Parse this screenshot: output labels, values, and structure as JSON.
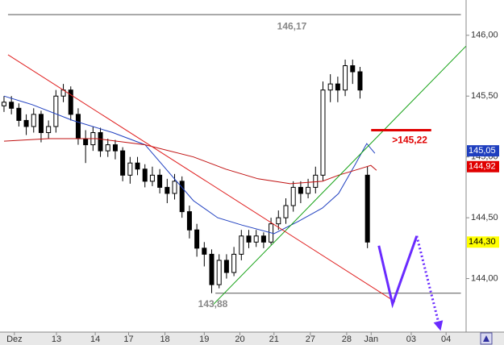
{
  "chart_data": {
    "type": "candlestick",
    "xlim": [
      -0.54,
      62.3
    ],
    "ylim": [
      143.56,
      146.29
    ],
    "yticks": [
      {
        "value": 146.0,
        "label": "146,00"
      },
      {
        "value": 145.5,
        "label": "145,50"
      },
      {
        "value": 145.0,
        "label": "145,00"
      },
      {
        "value": 144.5,
        "label": "144,50"
      },
      {
        "value": 144.0,
        "label": "144,00"
      }
    ],
    "xticks": [
      {
        "value": 1.4,
        "label": "Dez"
      },
      {
        "value": 7.07,
        "label": "13"
      },
      {
        "value": 12.3,
        "label": "14"
      },
      {
        "value": 16.8,
        "label": "17"
      },
      {
        "value": 21.7,
        "label": "18"
      },
      {
        "value": 27.0,
        "label": "19"
      },
      {
        "value": 31.8,
        "label": "20"
      },
      {
        "value": 36.4,
        "label": "21"
      },
      {
        "value": 41.3,
        "label": "27"
      },
      {
        "value": 46.2,
        "label": "28"
      },
      {
        "value": 49.5,
        "label": "Jan"
      },
      {
        "value": 54.9,
        "label": "03"
      },
      {
        "value": 59.6,
        "label": "04"
      }
    ],
    "candle_color": "#000000",
    "open": [
      145.42,
      145.45,
      145.4,
      145.3,
      145.25,
      145.35,
      145.2,
      145.25,
      145.5,
      145.55,
      145.35,
      145.15,
      145.1,
      145.2,
      145.05,
      145.1,
      145.05,
      144.85,
      144.95,
      144.9,
      144.8,
      144.85,
      144.75,
      144.7,
      144.8,
      144.55,
      144.4,
      144.25,
      144.2,
      143.95,
      144.15,
      144.05,
      144.2,
      144.35,
      144.3,
      144.35,
      144.3,
      144.45,
      144.5,
      144.6,
      144.75,
      144.7,
      144.75,
      144.85,
      145.55,
      145.6,
      145.55,
      145.75,
      145.7,
      144.85
    ],
    "high": [
      145.5,
      145.5,
      145.44,
      145.35,
      145.4,
      145.38,
      145.3,
      145.55,
      145.6,
      145.58,
      145.4,
      145.22,
      145.25,
      145.24,
      145.15,
      145.14,
      145.08,
      145.0,
      145.0,
      144.94,
      144.92,
      144.9,
      144.82,
      144.86,
      144.84,
      144.6,
      144.45,
      144.3,
      144.24,
      144.2,
      144.2,
      144.26,
      144.4,
      144.4,
      144.4,
      144.38,
      144.5,
      144.56,
      144.66,
      144.8,
      144.8,
      144.82,
      144.92,
      145.62,
      145.68,
      145.66,
      145.8,
      145.8,
      145.74,
      144.92
    ],
    "low": [
      145.37,
      145.35,
      145.25,
      145.18,
      145.2,
      145.12,
      145.15,
      145.2,
      145.45,
      145.3,
      145.1,
      144.95,
      145.05,
      145.0,
      145.0,
      144.98,
      144.8,
      144.78,
      144.85,
      144.75,
      144.76,
      144.7,
      144.62,
      144.65,
      144.5,
      144.33,
      144.18,
      144.1,
      143.88,
      143.92,
      144.0,
      144.02,
      144.15,
      144.25,
      144.26,
      144.25,
      144.28,
      144.4,
      144.45,
      144.55,
      144.62,
      144.66,
      144.7,
      144.8,
      145.45,
      145.45,
      145.5,
      145.6,
      145.48,
      144.25
    ],
    "close": [
      145.45,
      145.4,
      145.3,
      145.25,
      145.35,
      145.2,
      145.25,
      145.5,
      145.55,
      145.35,
      145.15,
      145.1,
      145.2,
      145.05,
      145.1,
      145.05,
      144.85,
      144.95,
      144.9,
      144.8,
      144.85,
      144.75,
      144.7,
      144.8,
      144.55,
      144.4,
      144.25,
      144.2,
      143.95,
      144.15,
      144.05,
      144.2,
      144.35,
      144.3,
      144.35,
      144.3,
      144.45,
      144.5,
      144.6,
      144.75,
      144.7,
      144.75,
      144.85,
      145.55,
      145.6,
      145.55,
      145.75,
      145.7,
      145.55,
      144.3
    ],
    "lines": [
      {
        "color": "#2040c0",
        "width": 1,
        "x": [
          0,
          3.8,
          9.24,
          14.67,
          19.02,
          22.83,
          25.54,
          28.8,
          32.07,
          36.41,
          39.67,
          42.93,
          45.11,
          47.28,
          48.91,
          50
        ],
        "y": [
          145.5,
          145.43,
          145.3,
          145.2,
          145.1,
          144.83,
          144.64,
          144.5,
          144.44,
          144.37,
          144.47,
          144.58,
          144.7,
          144.93,
          145.11,
          145.03
        ]
      },
      {
        "color": "#c01010",
        "width": 1,
        "x": [
          0,
          5.98,
          12.5,
          19.02,
          25.54,
          29.89,
          34.24,
          38.59,
          42.93,
          45.11,
          47.83,
          49.46,
          50.22
        ],
        "y": [
          145.13,
          145.15,
          145.15,
          145.1,
          145.0,
          144.9,
          144.82,
          144.78,
          144.8,
          144.85,
          144.9,
          144.93,
          144.89
        ]
      },
      {
        "color": "#10a010",
        "width": 1,
        "x": [
          28.26,
          62.28
        ],
        "y": [
          143.79,
          145.91
        ]
      },
      {
        "color": "#e02020",
        "width": 1,
        "x": [
          0.54,
          52.72
        ],
        "y": [
          145.84,
          143.81
        ]
      },
      {
        "color": "#6a2bff",
        "width": 3,
        "x": [
          50.54,
          52.39,
          55.65
        ],
        "y": [
          144.27,
          143.79,
          144.35
        ]
      },
      {
        "color": "#6a2bff",
        "width": 3,
        "style": "dotted",
        "arrow": true,
        "x": [
          55.65,
          58.7
        ],
        "y": [
          144.35,
          143.61
        ]
      }
    ],
    "levels": [
      {
        "value": 146.17,
        "label": "146,17",
        "from": 0.54,
        "to": 61.6,
        "color": "#555555"
      },
      {
        "value": 143.88,
        "label": "143,88",
        "from": 28.5,
        "to": 61.6,
        "color": "#555555"
      }
    ],
    "resistance": {
      "value": 145.22,
      "label": ">145,22",
      "from": 49.5,
      "to": 57.6,
      "color": "#e00000"
    },
    "price_tags": [
      {
        "value": 145.05,
        "label": "145,05",
        "color": "#1f3fbf",
        "text_color": "#ffffff"
      },
      {
        "value": 144.92,
        "label": "144,92",
        "color": "#e00000",
        "text_color": "#ffffff"
      },
      {
        "value": 144.3,
        "label": "144,30",
        "color": "#ffff00",
        "text_color": "#000000"
      }
    ]
  }
}
